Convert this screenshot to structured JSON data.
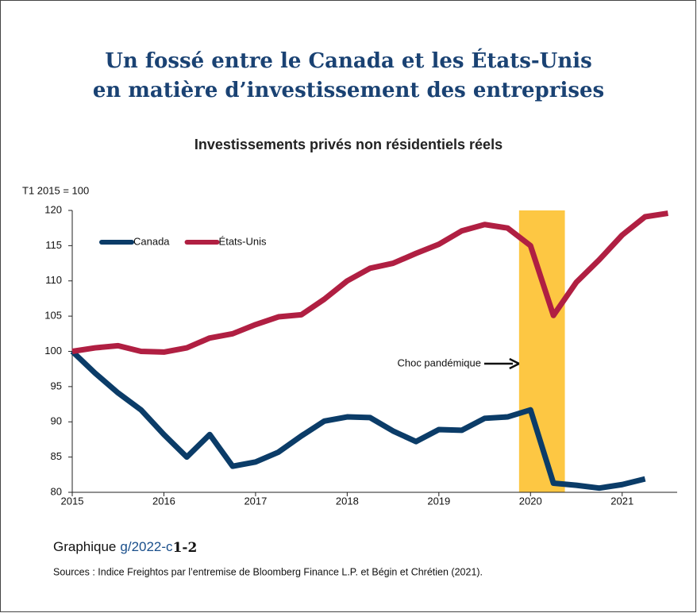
{
  "chart_data": {
    "type": "line",
    "title": [
      "Un fossé entre le Canada et les États-Unis",
      "en matière d’investissement des entreprises"
    ],
    "subtitle": "Investissements privés non résidentiels réels",
    "ylabel": "T1 2015 = 100",
    "x": [
      2015,
      2015.25,
      2015.5,
      2015.75,
      2016,
      2016.25,
      2016.5,
      2016.75,
      2017,
      2017.25,
      2017.5,
      2017.75,
      2018,
      2018.25,
      2018.5,
      2018.75,
      2019,
      2019.25,
      2019.5,
      2019.75,
      2020,
      2020.25,
      2020.5,
      2020.75,
      2021,
      2021.25,
      2021.5
    ],
    "series": [
      {
        "name": "Canada",
        "color": "#0b3c68",
        "values": [
          100,
          96.9,
          94.1,
          91.7,
          88.2,
          85.0,
          88.2,
          83.7,
          84.3,
          85.7,
          88.0,
          90.1,
          90.7,
          90.6,
          88.7,
          87.2,
          88.9,
          88.8,
          90.5,
          90.7,
          91.7,
          81.3,
          81.0,
          80.6,
          81.1,
          81.9,
          null
        ]
      },
      {
        "name": "États-Unis",
        "color": "#b01f42",
        "values": [
          100,
          100.5,
          100.8,
          100.0,
          99.9,
          100.5,
          101.9,
          102.5,
          103.8,
          104.9,
          105.2,
          107.4,
          110.0,
          111.8,
          112.5,
          113.9,
          115.2,
          117.1,
          118.0,
          117.5,
          115.0,
          105.1,
          109.8,
          113.0,
          116.5,
          119.1,
          119.6
        ]
      }
    ],
    "xlim": [
      2015,
      2021.6
    ],
    "xticks": [
      2015,
      2016,
      2017,
      2018,
      2019,
      2020,
      2021
    ],
    "ylim": [
      80,
      120
    ],
    "yticks": [
      80,
      85,
      90,
      95,
      100,
      105,
      110,
      115,
      120
    ],
    "shade": {
      "range": [
        2019.875,
        2020.375
      ],
      "color": "#fdc743"
    },
    "annotation": "Choc pandémique",
    "figure_label": [
      "Graphique",
      "g/2022-c",
      "1-2"
    ],
    "source": "Sources : Indice Freightos par l’entremise de Bloomberg Finance L.P. et Bégin et Chrétien (2021)."
  }
}
